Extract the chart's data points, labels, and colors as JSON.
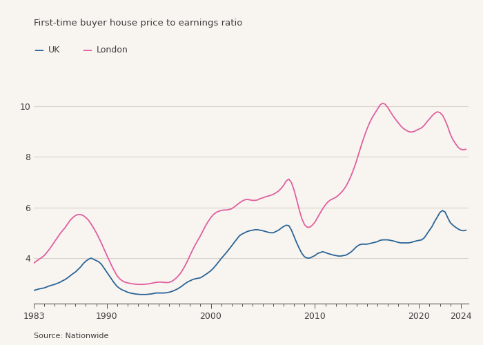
{
  "title": "First-time buyer house price to earnings ratio",
  "source": "Source: Nationwide",
  "legend": [
    "UK",
    "London"
  ],
  "line_colors": [
    "#2a6496",
    "#e05fa0"
  ],
  "background_color": "#f8f4f0",
  "text_color": "#3d3d3d",
  "grid_color": "#d8d0c8",
  "xlim": [
    1983.0,
    2024.75
  ],
  "ylim": [
    2.2,
    11.2
  ],
  "yticks": [
    4,
    6,
    8,
    10
  ],
  "xticks": [
    1983,
    1990,
    2000,
    2010,
    2020,
    2024
  ],
  "uk_data": [
    [
      1983.0,
      2.72
    ],
    [
      1983.25,
      2.75
    ],
    [
      1983.5,
      2.78
    ],
    [
      1983.75,
      2.8
    ],
    [
      1984.0,
      2.82
    ],
    [
      1984.25,
      2.86
    ],
    [
      1984.5,
      2.9
    ],
    [
      1984.75,
      2.93
    ],
    [
      1985.0,
      2.96
    ],
    [
      1985.25,
      3.0
    ],
    [
      1985.5,
      3.04
    ],
    [
      1985.75,
      3.1
    ],
    [
      1986.0,
      3.15
    ],
    [
      1986.25,
      3.22
    ],
    [
      1986.5,
      3.3
    ],
    [
      1986.75,
      3.38
    ],
    [
      1987.0,
      3.45
    ],
    [
      1987.25,
      3.55
    ],
    [
      1987.5,
      3.65
    ],
    [
      1987.75,
      3.78
    ],
    [
      1988.0,
      3.88
    ],
    [
      1988.25,
      3.95
    ],
    [
      1988.5,
      4.0
    ],
    [
      1988.75,
      3.95
    ],
    [
      1989.0,
      3.9
    ],
    [
      1989.25,
      3.85
    ],
    [
      1989.5,
      3.75
    ],
    [
      1989.75,
      3.6
    ],
    [
      1990.0,
      3.45
    ],
    [
      1990.25,
      3.3
    ],
    [
      1990.5,
      3.15
    ],
    [
      1990.75,
      3.0
    ],
    [
      1991.0,
      2.88
    ],
    [
      1991.25,
      2.8
    ],
    [
      1991.5,
      2.74
    ],
    [
      1991.75,
      2.7
    ],
    [
      1992.0,
      2.65
    ],
    [
      1992.25,
      2.62
    ],
    [
      1992.5,
      2.6
    ],
    [
      1992.75,
      2.58
    ],
    [
      1993.0,
      2.57
    ],
    [
      1993.25,
      2.56
    ],
    [
      1993.5,
      2.56
    ],
    [
      1993.75,
      2.56
    ],
    [
      1994.0,
      2.57
    ],
    [
      1994.25,
      2.58
    ],
    [
      1994.5,
      2.6
    ],
    [
      1994.75,
      2.62
    ],
    [
      1995.0,
      2.62
    ],
    [
      1995.25,
      2.62
    ],
    [
      1995.5,
      2.62
    ],
    [
      1995.75,
      2.63
    ],
    [
      1996.0,
      2.65
    ],
    [
      1996.25,
      2.68
    ],
    [
      1996.5,
      2.72
    ],
    [
      1996.75,
      2.77
    ],
    [
      1997.0,
      2.83
    ],
    [
      1997.25,
      2.9
    ],
    [
      1997.5,
      2.98
    ],
    [
      1997.75,
      3.05
    ],
    [
      1998.0,
      3.1
    ],
    [
      1998.25,
      3.15
    ],
    [
      1998.5,
      3.18
    ],
    [
      1998.75,
      3.2
    ],
    [
      1999.0,
      3.22
    ],
    [
      1999.25,
      3.28
    ],
    [
      1999.5,
      3.35
    ],
    [
      1999.75,
      3.42
    ],
    [
      2000.0,
      3.5
    ],
    [
      2000.25,
      3.6
    ],
    [
      2000.5,
      3.72
    ],
    [
      2000.75,
      3.85
    ],
    [
      2001.0,
      3.98
    ],
    [
      2001.25,
      4.1
    ],
    [
      2001.5,
      4.22
    ],
    [
      2001.75,
      4.35
    ],
    [
      2002.0,
      4.48
    ],
    [
      2002.25,
      4.62
    ],
    [
      2002.5,
      4.75
    ],
    [
      2002.75,
      4.88
    ],
    [
      2003.0,
      4.95
    ],
    [
      2003.25,
      5.0
    ],
    [
      2003.5,
      5.05
    ],
    [
      2003.75,
      5.08
    ],
    [
      2004.0,
      5.1
    ],
    [
      2004.25,
      5.12
    ],
    [
      2004.5,
      5.12
    ],
    [
      2004.75,
      5.1
    ],
    [
      2005.0,
      5.08
    ],
    [
      2005.25,
      5.05
    ],
    [
      2005.5,
      5.02
    ],
    [
      2005.75,
      5.0
    ],
    [
      2006.0,
      5.0
    ],
    [
      2006.25,
      5.05
    ],
    [
      2006.5,
      5.1
    ],
    [
      2006.75,
      5.18
    ],
    [
      2007.0,
      5.25
    ],
    [
      2007.25,
      5.3
    ],
    [
      2007.5,
      5.28
    ],
    [
      2007.75,
      5.1
    ],
    [
      2008.0,
      4.85
    ],
    [
      2008.25,
      4.6
    ],
    [
      2008.5,
      4.38
    ],
    [
      2008.75,
      4.18
    ],
    [
      2009.0,
      4.05
    ],
    [
      2009.25,
      4.0
    ],
    [
      2009.5,
      4.0
    ],
    [
      2009.75,
      4.05
    ],
    [
      2010.0,
      4.1
    ],
    [
      2010.25,
      4.18
    ],
    [
      2010.5,
      4.22
    ],
    [
      2010.75,
      4.25
    ],
    [
      2011.0,
      4.22
    ],
    [
      2011.25,
      4.18
    ],
    [
      2011.5,
      4.15
    ],
    [
      2011.75,
      4.12
    ],
    [
      2012.0,
      4.1
    ],
    [
      2012.25,
      4.08
    ],
    [
      2012.5,
      4.08
    ],
    [
      2012.75,
      4.1
    ],
    [
      2013.0,
      4.12
    ],
    [
      2013.25,
      4.18
    ],
    [
      2013.5,
      4.25
    ],
    [
      2013.75,
      4.35
    ],
    [
      2014.0,
      4.45
    ],
    [
      2014.25,
      4.52
    ],
    [
      2014.5,
      4.55
    ],
    [
      2014.75,
      4.55
    ],
    [
      2015.0,
      4.55
    ],
    [
      2015.25,
      4.57
    ],
    [
      2015.5,
      4.6
    ],
    [
      2015.75,
      4.62
    ],
    [
      2016.0,
      4.65
    ],
    [
      2016.25,
      4.7
    ],
    [
      2016.5,
      4.72
    ],
    [
      2016.75,
      4.72
    ],
    [
      2017.0,
      4.72
    ],
    [
      2017.25,
      4.7
    ],
    [
      2017.5,
      4.68
    ],
    [
      2017.75,
      4.65
    ],
    [
      2018.0,
      4.62
    ],
    [
      2018.25,
      4.6
    ],
    [
      2018.5,
      4.6
    ],
    [
      2018.75,
      4.6
    ],
    [
      2019.0,
      4.6
    ],
    [
      2019.25,
      4.62
    ],
    [
      2019.5,
      4.65
    ],
    [
      2019.75,
      4.68
    ],
    [
      2020.0,
      4.7
    ],
    [
      2020.25,
      4.72
    ],
    [
      2020.5,
      4.8
    ],
    [
      2020.75,
      4.95
    ],
    [
      2021.0,
      5.1
    ],
    [
      2021.25,
      5.25
    ],
    [
      2021.5,
      5.45
    ],
    [
      2021.75,
      5.62
    ],
    [
      2022.0,
      5.8
    ],
    [
      2022.25,
      5.88
    ],
    [
      2022.5,
      5.82
    ],
    [
      2022.75,
      5.6
    ],
    [
      2023.0,
      5.4
    ],
    [
      2023.25,
      5.3
    ],
    [
      2023.5,
      5.22
    ],
    [
      2023.75,
      5.15
    ],
    [
      2024.0,
      5.1
    ],
    [
      2024.25,
      5.08
    ],
    [
      2024.5,
      5.1
    ]
  ],
  "london_data": [
    [
      1983.0,
      3.8
    ],
    [
      1983.25,
      3.88
    ],
    [
      1983.5,
      3.95
    ],
    [
      1983.75,
      4.02
    ],
    [
      1984.0,
      4.1
    ],
    [
      1984.25,
      4.22
    ],
    [
      1984.5,
      4.35
    ],
    [
      1984.75,
      4.5
    ],
    [
      1985.0,
      4.65
    ],
    [
      1985.25,
      4.8
    ],
    [
      1985.5,
      4.95
    ],
    [
      1985.75,
      5.08
    ],
    [
      1986.0,
      5.2
    ],
    [
      1986.25,
      5.35
    ],
    [
      1986.5,
      5.5
    ],
    [
      1986.75,
      5.6
    ],
    [
      1987.0,
      5.68
    ],
    [
      1987.25,
      5.72
    ],
    [
      1987.5,
      5.72
    ],
    [
      1987.75,
      5.68
    ],
    [
      1988.0,
      5.6
    ],
    [
      1988.25,
      5.5
    ],
    [
      1988.5,
      5.35
    ],
    [
      1988.75,
      5.18
    ],
    [
      1989.0,
      5.0
    ],
    [
      1989.25,
      4.8
    ],
    [
      1989.5,
      4.58
    ],
    [
      1989.75,
      4.35
    ],
    [
      1990.0,
      4.12
    ],
    [
      1990.25,
      3.9
    ],
    [
      1990.5,
      3.68
    ],
    [
      1990.75,
      3.48
    ],
    [
      1991.0,
      3.3
    ],
    [
      1991.25,
      3.18
    ],
    [
      1991.5,
      3.1
    ],
    [
      1991.75,
      3.05
    ],
    [
      1992.0,
      3.02
    ],
    [
      1992.25,
      3.0
    ],
    [
      1992.5,
      2.98
    ],
    [
      1992.75,
      2.97
    ],
    [
      1993.0,
      2.96
    ],
    [
      1993.25,
      2.96
    ],
    [
      1993.5,
      2.96
    ],
    [
      1993.75,
      2.97
    ],
    [
      1994.0,
      2.98
    ],
    [
      1994.25,
      3.0
    ],
    [
      1994.5,
      3.02
    ],
    [
      1994.75,
      3.04
    ],
    [
      1995.0,
      3.05
    ],
    [
      1995.25,
      3.05
    ],
    [
      1995.5,
      3.04
    ],
    [
      1995.75,
      3.03
    ],
    [
      1996.0,
      3.04
    ],
    [
      1996.25,
      3.08
    ],
    [
      1996.5,
      3.15
    ],
    [
      1996.75,
      3.24
    ],
    [
      1997.0,
      3.35
    ],
    [
      1997.25,
      3.5
    ],
    [
      1997.5,
      3.68
    ],
    [
      1997.75,
      3.88
    ],
    [
      1998.0,
      4.1
    ],
    [
      1998.25,
      4.32
    ],
    [
      1998.5,
      4.52
    ],
    [
      1998.75,
      4.7
    ],
    [
      1999.0,
      4.88
    ],
    [
      1999.25,
      5.08
    ],
    [
      1999.5,
      5.28
    ],
    [
      1999.75,
      5.45
    ],
    [
      2000.0,
      5.6
    ],
    [
      2000.25,
      5.72
    ],
    [
      2000.5,
      5.8
    ],
    [
      2000.75,
      5.85
    ],
    [
      2001.0,
      5.88
    ],
    [
      2001.25,
      5.9
    ],
    [
      2001.5,
      5.9
    ],
    [
      2001.75,
      5.92
    ],
    [
      2002.0,
      5.95
    ],
    [
      2002.25,
      6.02
    ],
    [
      2002.5,
      6.1
    ],
    [
      2002.75,
      6.18
    ],
    [
      2003.0,
      6.25
    ],
    [
      2003.25,
      6.3
    ],
    [
      2003.5,
      6.32
    ],
    [
      2003.75,
      6.3
    ],
    [
      2004.0,
      6.28
    ],
    [
      2004.25,
      6.28
    ],
    [
      2004.5,
      6.3
    ],
    [
      2004.75,
      6.35
    ],
    [
      2005.0,
      6.38
    ],
    [
      2005.25,
      6.42
    ],
    [
      2005.5,
      6.45
    ],
    [
      2005.75,
      6.48
    ],
    [
      2006.0,
      6.52
    ],
    [
      2006.25,
      6.58
    ],
    [
      2006.5,
      6.65
    ],
    [
      2006.75,
      6.75
    ],
    [
      2007.0,
      6.88
    ],
    [
      2007.25,
      7.05
    ],
    [
      2007.5,
      7.12
    ],
    [
      2007.75,
      6.98
    ],
    [
      2008.0,
      6.68
    ],
    [
      2008.25,
      6.3
    ],
    [
      2008.5,
      5.9
    ],
    [
      2008.75,
      5.55
    ],
    [
      2009.0,
      5.32
    ],
    [
      2009.25,
      5.22
    ],
    [
      2009.5,
      5.22
    ],
    [
      2009.75,
      5.3
    ],
    [
      2010.0,
      5.42
    ],
    [
      2010.25,
      5.6
    ],
    [
      2010.5,
      5.78
    ],
    [
      2010.75,
      5.95
    ],
    [
      2011.0,
      6.1
    ],
    [
      2011.25,
      6.22
    ],
    [
      2011.5,
      6.3
    ],
    [
      2011.75,
      6.35
    ],
    [
      2012.0,
      6.4
    ],
    [
      2012.25,
      6.48
    ],
    [
      2012.5,
      6.58
    ],
    [
      2012.75,
      6.7
    ],
    [
      2013.0,
      6.85
    ],
    [
      2013.25,
      7.05
    ],
    [
      2013.5,
      7.28
    ],
    [
      2013.75,
      7.55
    ],
    [
      2014.0,
      7.85
    ],
    [
      2014.25,
      8.18
    ],
    [
      2014.5,
      8.52
    ],
    [
      2014.75,
      8.82
    ],
    [
      2015.0,
      9.1
    ],
    [
      2015.25,
      9.35
    ],
    [
      2015.5,
      9.55
    ],
    [
      2015.75,
      9.72
    ],
    [
      2016.0,
      9.88
    ],
    [
      2016.25,
      10.05
    ],
    [
      2016.5,
      10.12
    ],
    [
      2016.75,
      10.08
    ],
    [
      2017.0,
      9.95
    ],
    [
      2017.25,
      9.78
    ],
    [
      2017.5,
      9.62
    ],
    [
      2017.75,
      9.48
    ],
    [
      2018.0,
      9.35
    ],
    [
      2018.25,
      9.22
    ],
    [
      2018.5,
      9.12
    ],
    [
      2018.75,
      9.05
    ],
    [
      2019.0,
      9.0
    ],
    [
      2019.25,
      8.98
    ],
    [
      2019.5,
      9.0
    ],
    [
      2019.75,
      9.05
    ],
    [
      2020.0,
      9.1
    ],
    [
      2020.25,
      9.15
    ],
    [
      2020.5,
      9.25
    ],
    [
      2020.75,
      9.38
    ],
    [
      2021.0,
      9.5
    ],
    [
      2021.25,
      9.62
    ],
    [
      2021.5,
      9.72
    ],
    [
      2021.75,
      9.78
    ],
    [
      2022.0,
      9.75
    ],
    [
      2022.25,
      9.65
    ],
    [
      2022.5,
      9.45
    ],
    [
      2022.75,
      9.2
    ],
    [
      2023.0,
      8.9
    ],
    [
      2023.25,
      8.68
    ],
    [
      2023.5,
      8.52
    ],
    [
      2023.75,
      8.38
    ],
    [
      2024.0,
      8.3
    ],
    [
      2024.25,
      8.28
    ],
    [
      2024.5,
      8.3
    ]
  ]
}
